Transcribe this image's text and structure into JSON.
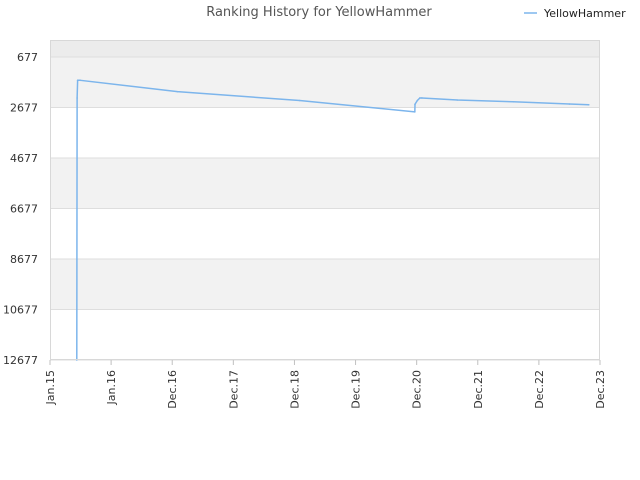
{
  "chart_data": {
    "type": "line",
    "title": "Ranking History for YellowHammer",
    "xlabel": "",
    "ylabel": "",
    "y_reversed": true,
    "ylim": [
      677,
      12677
    ],
    "y_ticks": [
      677,
      2677,
      4677,
      6677,
      8677,
      10677,
      12677
    ],
    "y_tick_labels": [
      "677",
      "2677",
      "4677",
      "6677",
      "8677",
      "10677",
      "12677"
    ],
    "xlim": [
      "2015-01-01",
      "2023-12-01"
    ],
    "x_ticks": [
      "2015-01-01",
      "2016-01-01",
      "2016-12-01",
      "2017-12-01",
      "2018-12-01",
      "2019-12-01",
      "2020-12-01",
      "2021-12-01",
      "2022-12-01",
      "2023-12-01"
    ],
    "x_tick_labels": [
      "Jan.15",
      "Jan.16",
      "Dec.16",
      "Dec.17",
      "Dec.18",
      "Dec.19",
      "Dec.20",
      "Dec.21",
      "Dec.22",
      "Dec.23"
    ],
    "legend": {
      "position": "top-right",
      "entries": [
        "YellowHammer"
      ]
    },
    "grid": true,
    "series": [
      {
        "name": "YellowHammer",
        "color": "#7cb5ec",
        "points": [
          {
            "x": "2015-06-10",
            "y": 12677
          },
          {
            "x": "2015-06-12",
            "y": 2300
          },
          {
            "x": "2015-06-15",
            "y": 1600
          },
          {
            "x": "2015-07-01",
            "y": 1600
          },
          {
            "x": "2017-01-01",
            "y": 2050
          },
          {
            "x": "2019-01-01",
            "y": 2400
          },
          {
            "x": "2020-11-20",
            "y": 2850
          },
          {
            "x": "2020-11-21",
            "y": 2550
          },
          {
            "x": "2020-12-05",
            "y": 2400
          },
          {
            "x": "2020-12-20",
            "y": 2300
          },
          {
            "x": "2021-01-01",
            "y": 2300
          },
          {
            "x": "2021-08-01",
            "y": 2380
          },
          {
            "x": "2022-07-01",
            "y": 2450
          },
          {
            "x": "2023-06-01",
            "y": 2540
          },
          {
            "x": "2023-09-25",
            "y": 2570
          }
        ]
      }
    ]
  }
}
